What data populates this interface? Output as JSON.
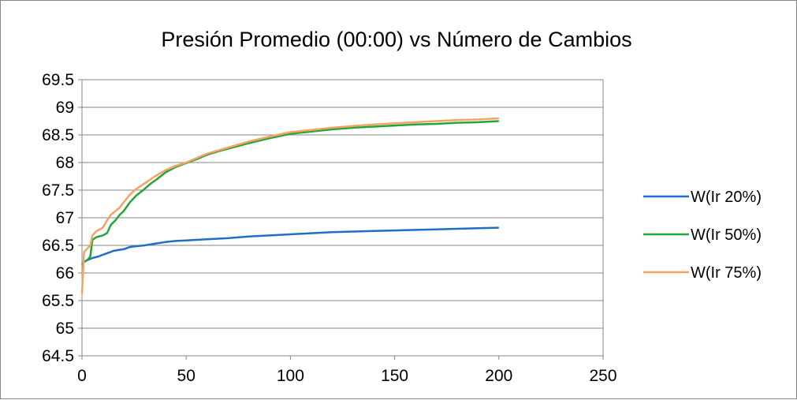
{
  "chart_data": {
    "type": "line",
    "title": "Presión Promedio (00:00) vs Número de Cambios",
    "xlabel": "",
    "ylabel": "",
    "xlim": [
      0,
      250
    ],
    "ylim": [
      64.5,
      69.5
    ],
    "x_ticks": [
      "0",
      "50",
      "100",
      "150",
      "200",
      "250"
    ],
    "y_ticks": [
      "64.5",
      "65",
      "65.5",
      "66",
      "66.5",
      "67",
      "67.5",
      "68",
      "68.5",
      "69",
      "69.5"
    ],
    "grid": "horizontal",
    "legend_position": "right",
    "series": [
      {
        "name": "W(Ir 20%)",
        "color": "#1f6fc4",
        "x": [
          0,
          1,
          3,
          5,
          8,
          10,
          13,
          15,
          18,
          20,
          23,
          25,
          30,
          35,
          40,
          45,
          50,
          55,
          60,
          70,
          80,
          90,
          100,
          110,
          120,
          130,
          140,
          150,
          160,
          170,
          180,
          190,
          200
        ],
        "y": [
          66.15,
          66.2,
          66.24,
          66.27,
          66.3,
          66.33,
          66.37,
          66.4,
          66.42,
          66.43,
          66.47,
          66.48,
          66.5,
          66.53,
          66.56,
          66.58,
          66.59,
          66.6,
          66.61,
          66.63,
          66.66,
          66.68,
          66.7,
          66.72,
          66.74,
          66.75,
          66.76,
          66.77,
          66.78,
          66.79,
          66.8,
          66.81,
          66.82
        ]
      },
      {
        "name": "W(Ir 50%)",
        "color": "#22a63c",
        "x": [
          0,
          1,
          3,
          4,
          5,
          7,
          10,
          12,
          14,
          16,
          18,
          20,
          23,
          26,
          30,
          33,
          36,
          40,
          45,
          50,
          55,
          60,
          65,
          70,
          80,
          90,
          100,
          110,
          120,
          130,
          140,
          150,
          160,
          170,
          180,
          190,
          200
        ],
        "y": [
          66.15,
          66.2,
          66.25,
          66.3,
          66.6,
          66.65,
          66.68,
          66.72,
          66.88,
          66.95,
          67.05,
          67.12,
          67.28,
          67.4,
          67.52,
          67.62,
          67.7,
          67.82,
          67.92,
          67.99,
          68.06,
          68.14,
          68.2,
          68.25,
          68.35,
          68.44,
          68.52,
          68.56,
          68.6,
          68.63,
          68.65,
          68.67,
          68.69,
          68.7,
          68.72,
          68.73,
          68.75
        ]
      },
      {
        "name": "W(Ir 75%)",
        "color": "#f4a460",
        "x": [
          0,
          1,
          2,
          3,
          4,
          5,
          7,
          10,
          12,
          14,
          16,
          18,
          20,
          23,
          26,
          30,
          35,
          40,
          45,
          50,
          55,
          60,
          70,
          80,
          90,
          100,
          110,
          120,
          130,
          140,
          150,
          160,
          170,
          180,
          190,
          200
        ],
        "y": [
          65.62,
          66.38,
          66.42,
          66.46,
          66.5,
          66.68,
          66.76,
          66.82,
          66.95,
          67.06,
          67.12,
          67.18,
          67.28,
          67.42,
          67.52,
          67.62,
          67.75,
          67.86,
          67.94,
          68.0,
          68.08,
          68.16,
          68.27,
          68.38,
          68.47,
          68.55,
          68.59,
          68.63,
          68.66,
          68.69,
          68.71,
          68.73,
          68.75,
          68.77,
          68.78,
          68.8
        ]
      }
    ]
  }
}
